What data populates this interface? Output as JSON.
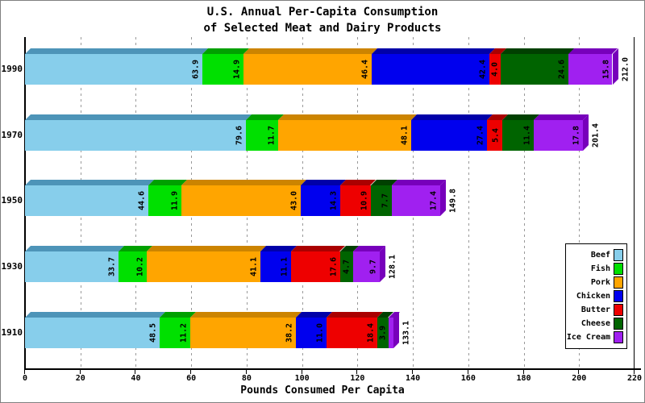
{
  "title": {
    "line1": "U.S. Annual Per-Capita Consumption",
    "line2": "of Selected Meat and Dairy Products"
  },
  "chart_data": {
    "type": "bar",
    "orientation": "horizontal",
    "stacked": true,
    "title": "U.S. Annual Per-Capita Consumption of Selected Meat and Dairy Products",
    "xlabel": "Pounds Consumed Per Capita",
    "ylabel": "",
    "xlim": [
      0,
      220
    ],
    "xticks": [
      0,
      20,
      40,
      60,
      80,
      100,
      120,
      140,
      160,
      180,
      200,
      220
    ],
    "grid": "vertical-dashed",
    "legend_position": "right",
    "categories": [
      "1990",
      "1970",
      "1950",
      "1930",
      "1910"
    ],
    "series": [
      {
        "name": "Beef",
        "color": "#87CEEB",
        "dark_color": "#4D94B8",
        "values": [
          63.9,
          79.6,
          44.6,
          33.7,
          48.5
        ]
      },
      {
        "name": "Fish",
        "color": "#00E000",
        "dark_color": "#00A000",
        "values": [
          14.9,
          11.7,
          11.9,
          10.2,
          11.2
        ]
      },
      {
        "name": "Pork",
        "color": "#FFA500",
        "dark_color": "#CC8400",
        "values": [
          46.4,
          48.1,
          43.0,
          41.1,
          38.2
        ]
      },
      {
        "name": "Chicken",
        "color": "#0000EE",
        "dark_color": "#0000A8",
        "values": [
          42.4,
          27.4,
          14.3,
          11.1,
          11.0
        ]
      },
      {
        "name": "Butter",
        "color": "#EE0000",
        "dark_color": "#AA0000",
        "values": [
          4.0,
          5.4,
          10.9,
          17.6,
          18.4
        ]
      },
      {
        "name": "Cheese",
        "color": "#006400",
        "dark_color": "#004000",
        "values": [
          24.6,
          11.4,
          7.7,
          4.7,
          3.9
        ]
      },
      {
        "name": "Ice Cream",
        "color": "#A020F0",
        "dark_color": "#7700BB",
        "values": [
          15.8,
          17.8,
          17.4,
          9.7,
          1.9
        ]
      }
    ],
    "totals": [
      212.0,
      201.4,
      149.8,
      128.1,
      133.1
    ],
    "value_label_color": "#000000",
    "gridline_color": "#9a9a9a"
  }
}
